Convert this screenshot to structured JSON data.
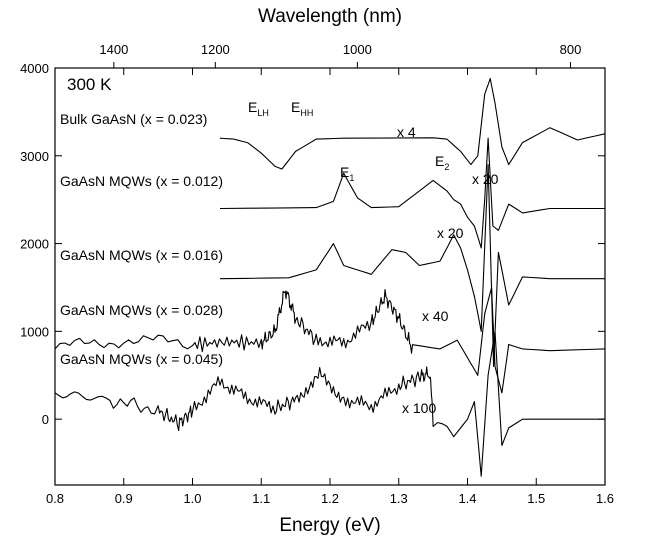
{
  "chart_data": {
    "type": "line",
    "title": "",
    "xlabel": "Energy (eV)",
    "ylabel": "",
    "top_xlabel": "Wavelength (nm)",
    "xlim": [
      0.8,
      1.6
    ],
    "ylim": [
      -750,
      4000
    ],
    "x_ticks": [
      "0.8",
      "0.9",
      "1.0",
      "1.1",
      "1.2",
      "1.3",
      "1.4",
      "1.5",
      "1.6"
    ],
    "y_ticks": [
      "0",
      "1000",
      "2000",
      "3000",
      "4000"
    ],
    "top_ticks": [
      "1400",
      "1200",
      "1000",
      "800"
    ],
    "temperature": "300 K",
    "series": [
      {
        "name": "Bulk GaAsN (x = 0.023)",
        "scale": "x 4",
        "points": [
          [
            1.04,
            3200
          ],
          [
            1.06,
            3190
          ],
          [
            1.08,
            3150
          ],
          [
            1.1,
            3030
          ],
          [
            1.12,
            2880
          ],
          [
            1.13,
            2850
          ],
          [
            1.15,
            3050
          ],
          [
            1.18,
            3190
          ],
          [
            1.22,
            3200
          ],
          [
            1.35,
            3205
          ],
          [
            1.37,
            3190
          ],
          [
            1.39,
            3050
          ],
          [
            1.405,
            2900
          ],
          [
            1.415,
            3000
          ],
          [
            1.425,
            3700
          ],
          [
            1.433,
            3880
          ],
          [
            1.44,
            3600
          ],
          [
            1.45,
            3100
          ],
          [
            1.46,
            2900
          ],
          [
            1.48,
            3150
          ],
          [
            1.52,
            3320
          ],
          [
            1.56,
            3180
          ],
          [
            1.6,
            3250
          ]
        ]
      },
      {
        "name": "GaAsN MQWs (x = 0.012)",
        "scale": "x 20",
        "points": [
          [
            1.04,
            2400
          ],
          [
            1.18,
            2410
          ],
          [
            1.205,
            2480
          ],
          [
            1.22,
            2800
          ],
          [
            1.24,
            2520
          ],
          [
            1.26,
            2410
          ],
          [
            1.3,
            2420
          ],
          [
            1.33,
            2600
          ],
          [
            1.35,
            2720
          ],
          [
            1.37,
            2600
          ],
          [
            1.38,
            2500
          ],
          [
            1.39,
            2450
          ],
          [
            1.4,
            2300
          ],
          [
            1.41,
            2200
          ],
          [
            1.42,
            1950
          ],
          [
            1.425,
            2500
          ],
          [
            1.43,
            3200
          ],
          [
            1.437,
            2200
          ],
          [
            1.445,
            2150
          ],
          [
            1.46,
            2450
          ],
          [
            1.48,
            2350
          ],
          [
            1.52,
            2400
          ],
          [
            1.6,
            2400
          ]
        ]
      },
      {
        "name": "GaAsN MQWs (x = 0.016)",
        "scale": "x 20",
        "points": [
          [
            1.04,
            1600
          ],
          [
            1.14,
            1610
          ],
          [
            1.18,
            1700
          ],
          [
            1.205,
            2000
          ],
          [
            1.22,
            1750
          ],
          [
            1.24,
            1700
          ],
          [
            1.26,
            1650
          ],
          [
            1.29,
            1930
          ],
          [
            1.31,
            1900
          ],
          [
            1.33,
            1750
          ],
          [
            1.36,
            1800
          ],
          [
            1.38,
            2100
          ],
          [
            1.39,
            1950
          ],
          [
            1.4,
            1700
          ],
          [
            1.41,
            1400
          ],
          [
            1.42,
            1000
          ],
          [
            1.43,
            2900
          ],
          [
            1.438,
            600
          ],
          [
            1.445,
            1900
          ],
          [
            1.46,
            1300
          ],
          [
            1.48,
            1620
          ],
          [
            1.52,
            1600
          ],
          [
            1.6,
            1600
          ]
        ]
      },
      {
        "name": "GaAsN MQWs (x = 0.028)",
        "scale": "x 40",
        "points": [
          [
            0.8,
            800
          ],
          [
            0.9,
            910
          ],
          [
            1.0,
            850
          ],
          [
            1.05,
            880
          ],
          [
            1.1,
            870
          ],
          [
            1.12,
            1000
          ],
          [
            1.135,
            1480
          ],
          [
            1.15,
            1150
          ],
          [
            1.18,
            900
          ],
          [
            1.22,
            870
          ],
          [
            1.26,
            1100
          ],
          [
            1.28,
            1400
          ],
          [
            1.3,
            1150
          ],
          [
            1.32,
            800
          ],
          [
            1.36,
            800
          ],
          [
            1.385,
            900
          ],
          [
            1.4,
            700
          ],
          [
            1.415,
            500
          ],
          [
            1.425,
            1200
          ],
          [
            1.435,
            1500
          ],
          [
            1.44,
            600
          ],
          [
            1.45,
            300
          ],
          [
            1.46,
            850
          ],
          [
            1.48,
            800
          ],
          [
            1.52,
            780
          ],
          [
            1.6,
            800
          ]
        ]
      },
      {
        "name": "GaAsN MQWs (x = 0.045)",
        "scale": "x 100",
        "points": [
          [
            0.8,
            300
          ],
          [
            0.88,
            220
          ],
          [
            0.95,
            100
          ],
          [
            0.98,
            -50
          ],
          [
            1.0,
            100
          ],
          [
            1.04,
            430
          ],
          [
            1.08,
            240
          ],
          [
            1.12,
            120
          ],
          [
            1.15,
            220
          ],
          [
            1.185,
            500
          ],
          [
            1.22,
            230
          ],
          [
            1.26,
            150
          ],
          [
            1.3,
            380
          ],
          [
            1.33,
            480
          ],
          [
            1.345,
            520
          ],
          [
            1.35,
            0
          ],
          [
            1.37,
            -80
          ],
          [
            1.38,
            -200
          ],
          [
            1.4,
            0
          ],
          [
            1.41,
            200
          ],
          [
            1.42,
            -650
          ],
          [
            1.43,
            500
          ],
          [
            1.44,
            1000
          ],
          [
            1.45,
            -300
          ],
          [
            1.46,
            -100
          ],
          [
            1.48,
            0
          ],
          [
            1.6,
            0
          ]
        ]
      }
    ],
    "annotations": [
      "E",
      "E",
      "E",
      "E"
    ],
    "annotation_subscripts": [
      "LH",
      "HH",
      "1",
      "2"
    ]
  }
}
